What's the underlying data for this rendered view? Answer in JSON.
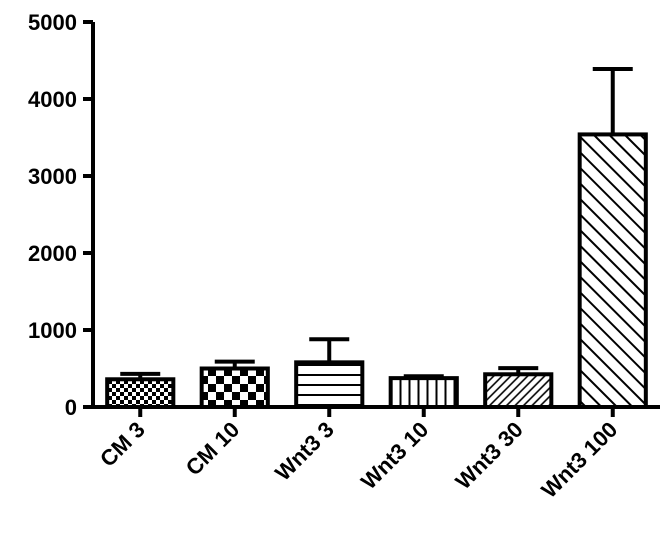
{
  "chart_data": {
    "type": "bar",
    "categories": [
      "CM 3",
      "CM 10",
      "Wnt3 3",
      "Wnt3 10",
      "Wnt3 30",
      "Wnt3 100"
    ],
    "values": [
      360,
      500,
      580,
      375,
      425,
      3540
    ],
    "errors": [
      70,
      90,
      300,
      25,
      80,
      850
    ],
    "patterns": [
      "small-checker",
      "large-checker",
      "horizontal-lines",
      "vertical-lines",
      "diagonal-fine",
      "diagonal-wide"
    ],
    "yticks": [
      0,
      1000,
      2000,
      3000,
      4000,
      5000
    ],
    "ylim": [
      0,
      5000
    ],
    "title": "",
    "xlabel": "",
    "ylabel": "",
    "grid": false,
    "colors": {
      "bar_stroke": "#000000",
      "bar_fill": "#ffffff",
      "pattern": "#000000"
    }
  }
}
